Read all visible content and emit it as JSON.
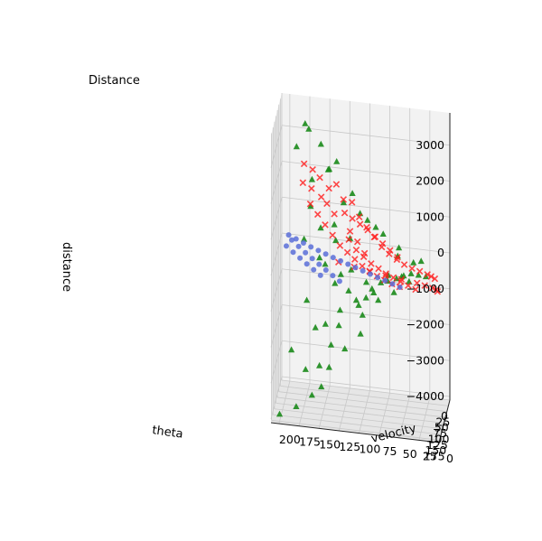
{
  "chart_data": {
    "type": "scatter3d",
    "title": "Distance",
    "xlabel": "theta",
    "ylabel": "velocity",
    "zlabel": "distance",
    "x_ticks": [
      "0",
      "25",
      "50",
      "75",
      "100",
      "125",
      "150",
      "175"
    ],
    "y_ticks": [
      "200",
      "175",
      "150",
      "125",
      "100",
      "75",
      "50",
      "25",
      "0"
    ],
    "z_ticks": [
      "3000",
      "2000",
      "1000",
      "0",
      "−1000",
      "−2000",
      "−3000",
      "−4000"
    ],
    "xlim": [
      0,
      185
    ],
    "ylim": [
      0,
      210
    ],
    "zlim": [
      -4100,
      3900
    ],
    "grid": true,
    "colors": {
      "green": "#1a8a1a",
      "red": "#ff1a1a",
      "blue": "#5a6fd8"
    },
    "series": [
      {
        "marker": "triangle",
        "color": "#1a8a1a",
        "points": [
          [
            10,
            150,
            2000
          ],
          [
            12,
            180,
            3200
          ],
          [
            15,
            160,
            2700
          ],
          [
            18,
            175,
            3100
          ],
          [
            20,
            140,
            2300
          ],
          [
            22,
            190,
            2600
          ],
          [
            25,
            120,
            1500
          ],
          [
            28,
            150,
            2100
          ],
          [
            30,
            110,
            1000
          ],
          [
            32,
            170,
            1800
          ],
          [
            35,
            90,
            700
          ],
          [
            38,
            130,
            1300
          ],
          [
            40,
            100,
            900
          ],
          [
            45,
            80,
            600
          ],
          [
            50,
            60,
            300
          ],
          [
            55,
            170,
            1200
          ],
          [
            60,
            140,
            800
          ],
          [
            65,
            120,
            500
          ],
          [
            70,
            60,
            200
          ],
          [
            75,
            40,
            100
          ],
          [
            80,
            150,
            -200
          ],
          [
            85,
            130,
            -400
          ],
          [
            90,
            120,
            -800
          ],
          [
            95,
            110,
            -1000
          ],
          [
            100,
            90,
            -600
          ],
          [
            105,
            70,
            -300
          ],
          [
            110,
            160,
            -1800
          ],
          [
            115,
            140,
            -2200
          ],
          [
            120,
            130,
            -1600
          ],
          [
            125,
            100,
            -1200
          ],
          [
            130,
            80,
            -700
          ],
          [
            135,
            60,
            -400
          ],
          [
            140,
            170,
            -2800
          ],
          [
            145,
            150,
            -3200
          ],
          [
            150,
            140,
            -2600
          ],
          [
            155,
            120,
            -2000
          ],
          [
            160,
            100,
            -1500
          ],
          [
            165,
            180,
            -3700
          ],
          [
            170,
            160,
            -3300
          ],
          [
            175,
            200,
            -3900
          ],
          [
            178,
            150,
            -2400
          ],
          [
            60,
            100,
            -700
          ],
          [
            70,
            90,
            -900
          ],
          [
            85,
            80,
            -500
          ],
          [
            95,
            70,
            -200
          ],
          [
            105,
            50,
            -100
          ],
          [
            115,
            40,
            50
          ],
          [
            125,
            30,
            100
          ],
          [
            135,
            20,
            150
          ],
          [
            40,
            160,
            -300
          ],
          [
            50,
            140,
            -900
          ],
          [
            45,
            120,
            -500
          ],
          [
            55,
            110,
            -1400
          ],
          [
            65,
            100,
            -1100
          ],
          [
            75,
            150,
            -1900
          ],
          [
            30,
            180,
            100
          ],
          [
            20,
            160,
            400
          ],
          [
            35,
            140,
            200
          ],
          [
            110,
            190,
            -2500
          ],
          [
            120,
            170,
            -1000
          ],
          [
            100,
            130,
            -1300
          ],
          [
            90,
            60,
            -300
          ],
          [
            140,
            50,
            100
          ],
          [
            150,
            40,
            50
          ],
          [
            80,
            30,
            200
          ]
        ]
      },
      {
        "marker": "x",
        "color": "#ff1a1a",
        "points": [
          [
            10,
            160,
            1200
          ],
          [
            15,
            150,
            1500
          ],
          [
            20,
            170,
            2000
          ],
          [
            25,
            140,
            1700
          ],
          [
            30,
            180,
            2200
          ],
          [
            32,
            120,
            1300
          ],
          [
            35,
            160,
            1900
          ],
          [
            40,
            130,
            1400
          ],
          [
            45,
            110,
            1000
          ],
          [
            50,
            150,
            1300
          ],
          [
            55,
            100,
            800
          ],
          [
            60,
            140,
            1100
          ],
          [
            62,
            90,
            600
          ],
          [
            65,
            120,
            700
          ],
          [
            70,
            80,
            400
          ],
          [
            75,
            110,
            500
          ],
          [
            80,
            70,
            300
          ],
          [
            85,
            60,
            200
          ],
          [
            90,
            100,
            300
          ],
          [
            95,
            50,
            150
          ],
          [
            100,
            40,
            100
          ],
          [
            105,
            30,
            80
          ],
          [
            110,
            20,
            50
          ],
          [
            115,
            15,
            40
          ],
          [
            120,
            10,
            20
          ],
          [
            125,
            130,
            200
          ],
          [
            130,
            110,
            150
          ],
          [
            135,
            90,
            100
          ],
          [
            140,
            70,
            80
          ],
          [
            145,
            50,
            60
          ],
          [
            150,
            30,
            40
          ],
          [
            155,
            20,
            30
          ],
          [
            160,
            10,
            20
          ],
          [
            165,
            5,
            10
          ],
          [
            170,
            3,
            5
          ],
          [
            40,
            170,
            1600
          ],
          [
            50,
            180,
            1800
          ],
          [
            60,
            170,
            1300
          ],
          [
            70,
            160,
            1100
          ],
          [
            80,
            150,
            900
          ],
          [
            90,
            140,
            700
          ],
          [
            100,
            130,
            500
          ],
          [
            110,
            120,
            400
          ],
          [
            120,
            110,
            300
          ],
          [
            130,
            100,
            200
          ],
          [
            140,
            90,
            150
          ],
          [
            150,
            80,
            100
          ],
          [
            160,
            70,
            80
          ],
          [
            170,
            60,
            60
          ],
          [
            175,
            50,
            40
          ],
          [
            85,
            120,
            600
          ],
          [
            95,
            110,
            400
          ],
          [
            105,
            100,
            300
          ],
          [
            115,
            90,
            200
          ],
          [
            125,
            80,
            150
          ],
          [
            135,
            70,
            100
          ],
          [
            145,
            60,
            80
          ],
          [
            155,
            50,
            60
          ],
          [
            165,
            40,
            40
          ],
          [
            175,
            30,
            20
          ],
          [
            20,
            130,
            900
          ],
          [
            25,
            120,
            800
          ],
          [
            30,
            110,
            700
          ],
          [
            35,
            100,
            600
          ],
          [
            45,
            90,
            500
          ],
          [
            55,
            80,
            400
          ],
          [
            65,
            70,
            300
          ],
          [
            75,
            60,
            200
          ]
        ]
      },
      {
        "marker": "circle",
        "color": "#5a6fd8",
        "points": [
          [
            20,
            200,
            100
          ],
          [
            30,
            190,
            80
          ],
          [
            40,
            180,
            60
          ],
          [
            50,
            170,
            40
          ],
          [
            60,
            160,
            30
          ],
          [
            70,
            150,
            20
          ],
          [
            80,
            140,
            15
          ],
          [
            90,
            130,
            10
          ],
          [
            100,
            120,
            8
          ],
          [
            110,
            110,
            5
          ],
          [
            120,
            100,
            3
          ],
          [
            130,
            90,
            2
          ],
          [
            140,
            80,
            1
          ],
          [
            150,
            70,
            0
          ],
          [
            160,
            60,
            0
          ],
          [
            170,
            50,
            0
          ],
          [
            60,
            200,
            50
          ],
          [
            80,
            190,
            30
          ],
          [
            100,
            180,
            20
          ],
          [
            120,
            170,
            10
          ],
          [
            140,
            160,
            5
          ],
          [
            160,
            150,
            2
          ],
          [
            35,
            195,
            70
          ],
          [
            55,
            185,
            45
          ],
          [
            75,
            175,
            25
          ],
          [
            95,
            165,
            15
          ],
          [
            115,
            155,
            8
          ],
          [
            135,
            145,
            4
          ],
          [
            155,
            135,
            2
          ],
          [
            175,
            125,
            1
          ]
        ]
      }
    ]
  }
}
